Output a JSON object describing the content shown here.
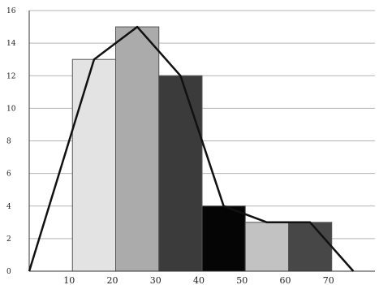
{
  "chart_data": {
    "type": "bar",
    "title": "",
    "xlabel": "",
    "ylabel": "",
    "ylim": [
      0,
      16
    ],
    "grid": true,
    "y_ticks": [
      "0",
      "2",
      "4",
      "6",
      "8",
      "10",
      "12",
      "14",
      "16"
    ],
    "x_ticks": [
      "10",
      "20",
      "30",
      "40",
      "50",
      "60",
      "70"
    ],
    "x_tick_values": [
      10,
      20,
      30,
      40,
      50,
      60,
      70
    ],
    "bars": [
      {
        "x_start": 10,
        "x_end": 20,
        "value": 13,
        "color": "#e3e3e3"
      },
      {
        "x_start": 20,
        "x_end": 30,
        "value": 15,
        "color": "#ababab"
      },
      {
        "x_start": 30,
        "x_end": 40,
        "value": 12,
        "color": "#3b3b3b"
      },
      {
        "x_start": 40,
        "x_end": 50,
        "value": 4,
        "color": "#050505"
      },
      {
        "x_start": 50,
        "x_end": 60,
        "value": 3,
        "color": "#c2c2c2"
      },
      {
        "x_start": 60,
        "x_end": 70,
        "value": 3,
        "color": "#474747"
      }
    ],
    "frequency_polygon": {
      "x": [
        0,
        15,
        25,
        35,
        45,
        55,
        65,
        75
      ],
      "y": [
        0,
        13,
        15,
        12,
        4,
        3,
        3,
        0
      ]
    }
  }
}
